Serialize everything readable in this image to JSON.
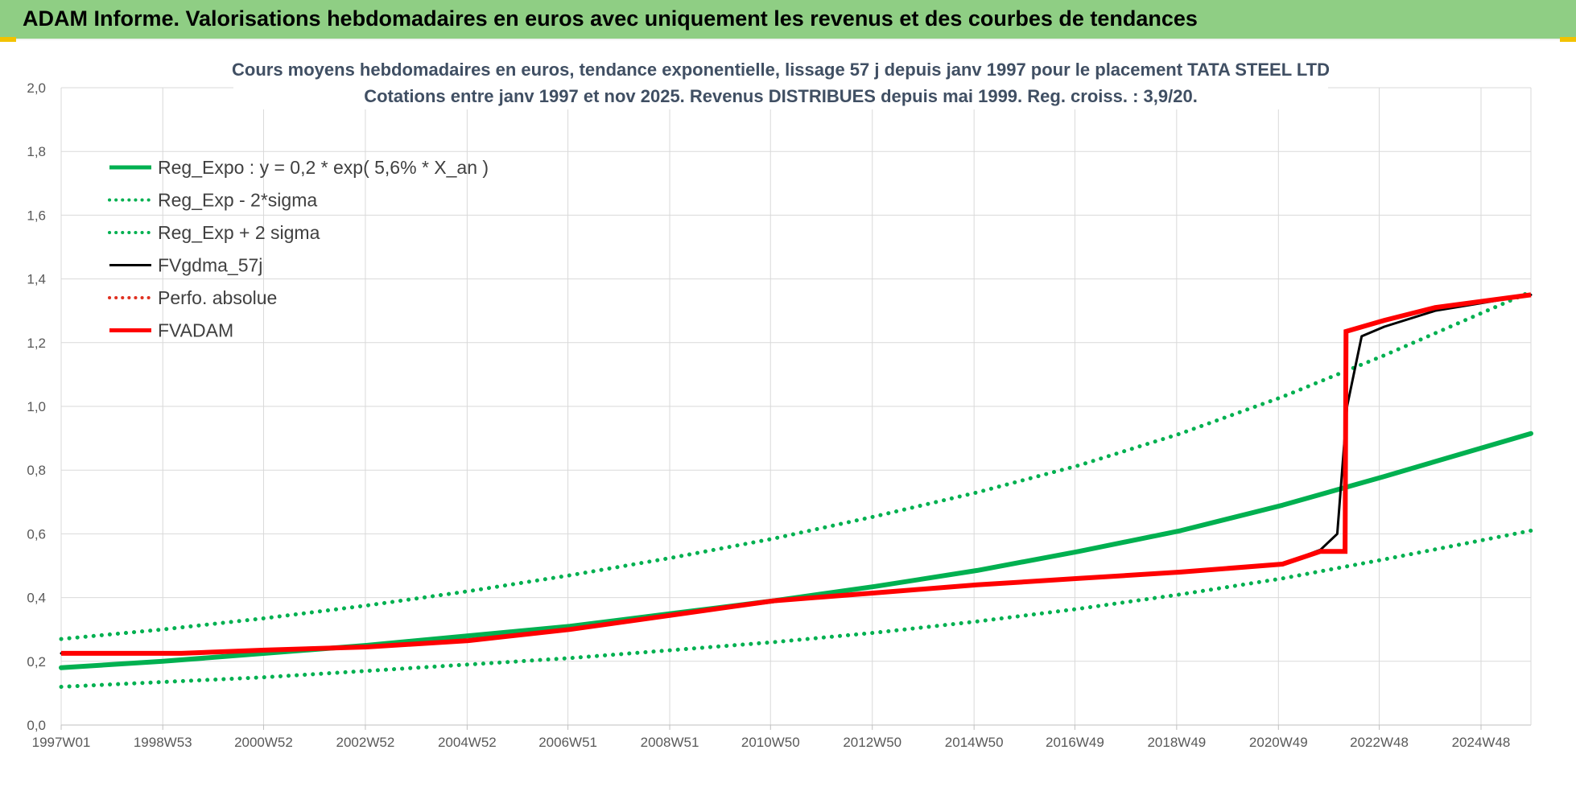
{
  "banner": {
    "title": "ADAM Informe. Valorisations hebdomadaires en euros avec uniquement les revenus et des courbes de tendances"
  },
  "colors": {
    "banner_bg": "#8fce84",
    "trend": "#00b050",
    "fvgdma": "#000000",
    "fvadam": "#ff0000",
    "perfo": "#e03020",
    "grid": "#d9d9d9"
  },
  "chart_data": {
    "type": "line",
    "title": "Cours moyens hebdomadaires en euros, tendance exponentielle, lissage 57 j depuis janv 1997  pour le placement TATA  STEEL LTD",
    "subtitle": "Cotations entre janv 1997 et nov 2025. Revenus DISTRIBUES depuis mai 1999.  Reg. croiss. : 3,9/20.",
    "x_ticks": [
      "1997W01",
      "1998W53",
      "2000W52",
      "2002W52",
      "2004W52",
      "2006W51",
      "2008W51",
      "2010W50",
      "2012W50",
      "2014W50",
      "2016W49",
      "2018W49",
      "2020W49",
      "2022W48",
      "2024W48"
    ],
    "x_range": [
      "1997W01",
      "2025W47"
    ],
    "y_ticks": [
      "0,0",
      "0,2",
      "0,4",
      "0,6",
      "0,8",
      "1,0",
      "1,2",
      "1,4",
      "1,6",
      "1,8",
      "2,0"
    ],
    "ylim": [
      0,
      2
    ],
    "grid": true,
    "legend_position": "top-left",
    "legend": [
      {
        "label": "Reg_Expo : y = 0,2 * exp( 5,6% *  X_an )",
        "color": "#00b050",
        "style": "solid"
      },
      {
        "label": "Reg_Exp - 2*sigma",
        "color": "#00b050",
        "style": "dotted"
      },
      {
        "label": "Reg_Exp + 2 sigma",
        "color": "#00b050",
        "style": "dotted"
      },
      {
        "label": "FVgdma_57j",
        "color": "#000000",
        "style": "solid"
      },
      {
        "label": "Perfo. absolue",
        "color": "#e03020",
        "style": "dotted"
      },
      {
        "label": "FVADAM",
        "color": "#ff0000",
        "style": "solid"
      }
    ],
    "series": [
      {
        "name": "Reg_Expo : y = 0,2 * exp( 5,6% *  X_an )",
        "x": [
          "1997W01",
          "1999W01",
          "2001W01",
          "2003W01",
          "2005W01",
          "2007W01",
          "2009W01",
          "2011W01",
          "2013W01",
          "2015W01",
          "2017W01",
          "2019W01",
          "2021W01",
          "2023W01",
          "2025W47"
        ],
        "values": [
          0.18,
          0.2,
          0.225,
          0.25,
          0.28,
          0.31,
          0.35,
          0.39,
          0.435,
          0.485,
          0.545,
          0.61,
          0.69,
          0.78,
          0.915
        ]
      },
      {
        "name": "Reg_Exp - 2*sigma",
        "x": [
          "1997W01",
          "1999W01",
          "2001W01",
          "2003W01",
          "2005W01",
          "2007W01",
          "2009W01",
          "2011W01",
          "2013W01",
          "2015W01",
          "2017W01",
          "2019W01",
          "2021W01",
          "2023W01",
          "2025W47"
        ],
        "values": [
          0.12,
          0.135,
          0.15,
          0.17,
          0.19,
          0.21,
          0.235,
          0.26,
          0.29,
          0.325,
          0.365,
          0.41,
          0.46,
          0.52,
          0.61
        ]
      },
      {
        "name": "Reg_Exp + 2 sigma",
        "x": [
          "1997W01",
          "1999W01",
          "2001W01",
          "2003W01",
          "2005W01",
          "2007W01",
          "2009W01",
          "2011W01",
          "2013W01",
          "2015W01",
          "2017W01",
          "2019W01",
          "2021W01",
          "2023W01",
          "2025W47"
        ],
        "values": [
          0.27,
          0.3,
          0.335,
          0.375,
          0.42,
          0.47,
          0.525,
          0.585,
          0.655,
          0.73,
          0.815,
          0.915,
          1.03,
          1.16,
          1.36
        ]
      },
      {
        "name": "FVgdma_57j",
        "x": [
          "1997W01",
          "1999W20",
          "2001W01",
          "2003W01",
          "2005W01",
          "2007W01",
          "2009W01",
          "2011W01",
          "2013W01",
          "2015W01",
          "2017W01",
          "2019W01",
          "2021W01",
          "2021W40",
          "2022W05",
          "2022W15",
          "2022W30",
          "2023W01",
          "2024W01",
          "2025W47"
        ],
        "values": [
          0.225,
          0.225,
          0.235,
          0.245,
          0.265,
          0.3,
          0.345,
          0.39,
          0.415,
          0.44,
          0.46,
          0.48,
          0.505,
          0.55,
          0.6,
          1.0,
          1.22,
          1.25,
          1.3,
          1.35
        ]
      },
      {
        "name": "FVADAM",
        "x": [
          "1997W01",
          "1999W20",
          "2001W01",
          "2003W01",
          "2005W01",
          "2007W01",
          "2009W01",
          "2011W01",
          "2013W01",
          "2015W01",
          "2017W01",
          "2019W01",
          "2021W01",
          "2021W40",
          "2022W13",
          "2022W14",
          "2023W01",
          "2024W01",
          "2025W47"
        ],
        "values": [
          0.225,
          0.225,
          0.235,
          0.245,
          0.265,
          0.3,
          0.345,
          0.39,
          0.415,
          0.44,
          0.46,
          0.48,
          0.505,
          0.545,
          0.545,
          1.235,
          1.27,
          1.31,
          1.35
        ]
      }
    ]
  }
}
